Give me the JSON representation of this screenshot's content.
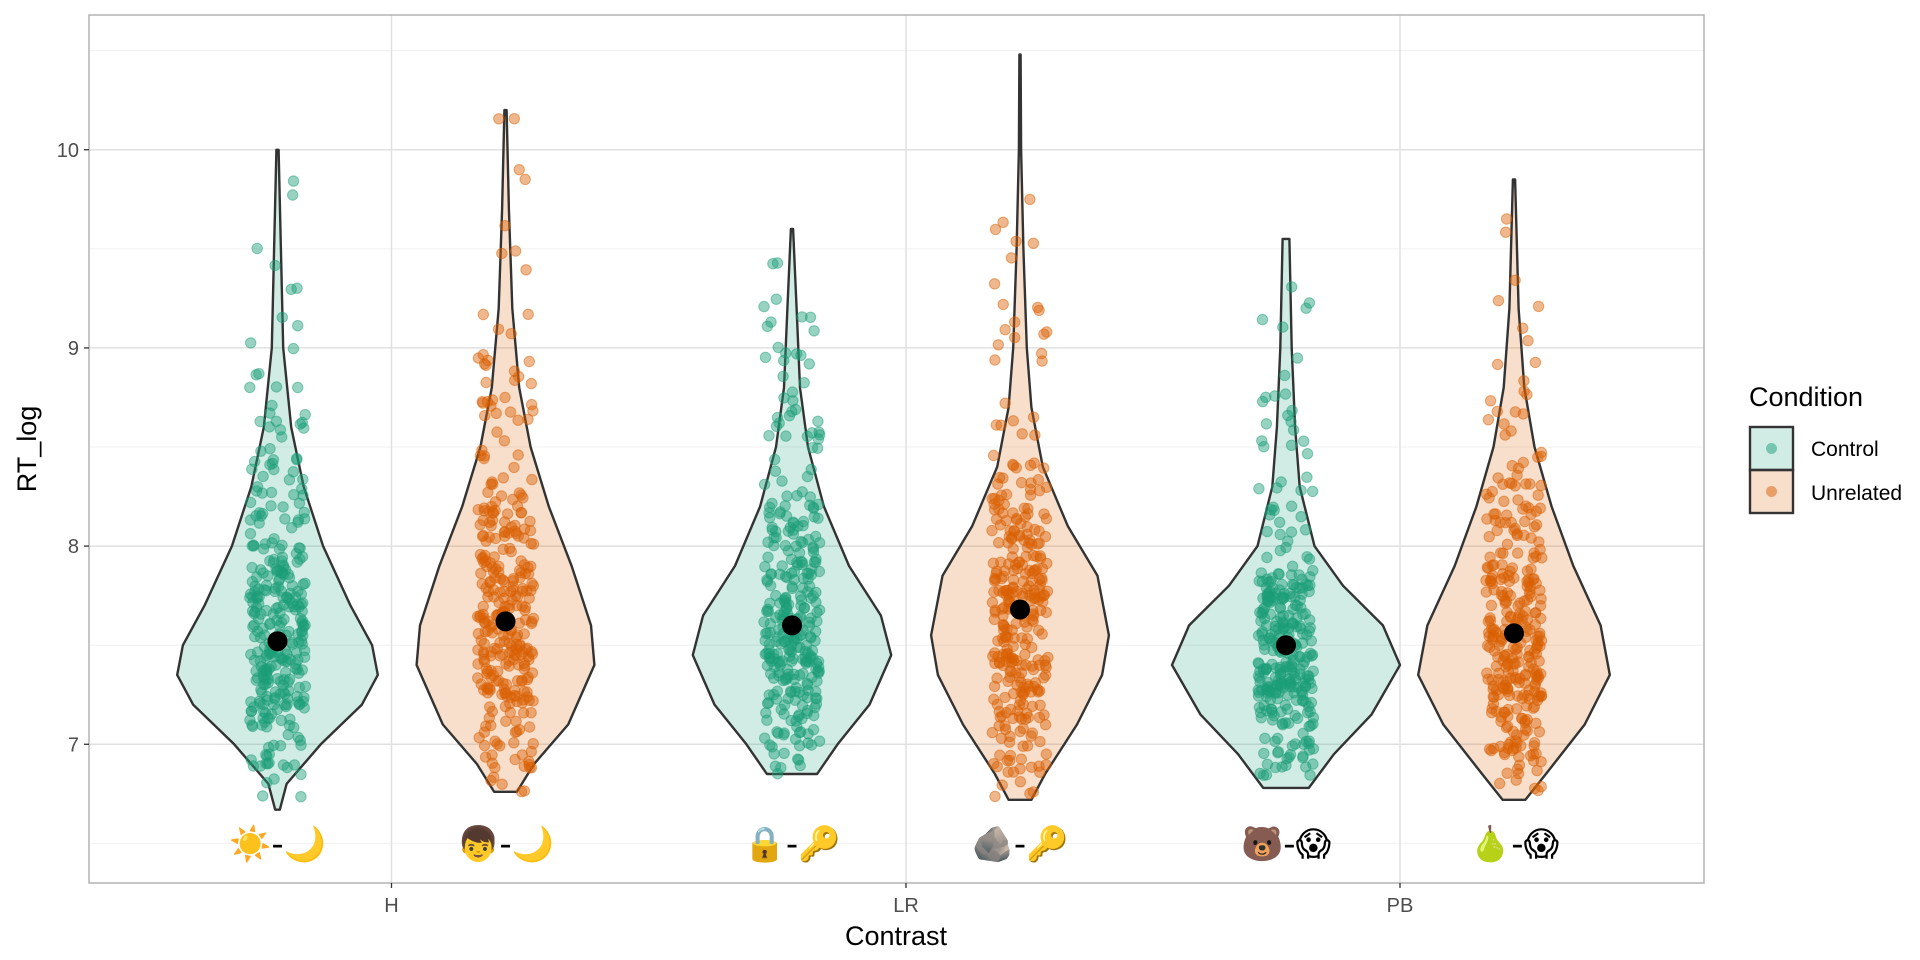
{
  "chart_data": {
    "type": "violin",
    "title": "",
    "xlabel": "Contrast",
    "ylabel": "RT_log",
    "categories": [
      "H",
      "LR",
      "PB"
    ],
    "ylim": [
      6.3,
      10.68
    ],
    "yticks": [
      7,
      8,
      9,
      10
    ],
    "grid": true,
    "legend": {
      "title": "Condition",
      "placement": "right",
      "entries": [
        "Control",
        "Unrelated"
      ]
    },
    "colors": {
      "Control": "#1B9E77",
      "Unrelated": "#D95F02"
    },
    "series": [
      {
        "name": "Control",
        "violins": [
          {
            "category": "H",
            "min": 6.67,
            "max": 10.0,
            "mean": 7.52,
            "label": "☀️-🌙",
            "profile": [
              [
                6.67,
                0.02
              ],
              [
                6.8,
                0.08
              ],
              [
                7.0,
                0.38
              ],
              [
                7.2,
                0.74
              ],
              [
                7.35,
                0.88
              ],
              [
                7.5,
                0.83
              ],
              [
                7.7,
                0.64
              ],
              [
                8.0,
                0.4
              ],
              [
                8.3,
                0.23
              ],
              [
                8.6,
                0.12
              ],
              [
                9.0,
                0.05
              ],
              [
                9.5,
                0.03
              ],
              [
                10.0,
                0.01
              ]
            ]
          },
          {
            "category": "LR",
            "min": 6.85,
            "max": 9.6,
            "mean": 7.6,
            "label": "🔒-🔑",
            "profile": [
              [
                6.85,
                0.22
              ],
              [
                7.0,
                0.4
              ],
              [
                7.2,
                0.68
              ],
              [
                7.45,
                0.87
              ],
              [
                7.65,
                0.78
              ],
              [
                7.9,
                0.5
              ],
              [
                8.2,
                0.28
              ],
              [
                8.5,
                0.14
              ],
              [
                8.8,
                0.07
              ],
              [
                9.2,
                0.04
              ],
              [
                9.6,
                0.01
              ]
            ]
          },
          {
            "category": "PB",
            "min": 6.78,
            "max": 9.55,
            "mean": 7.5,
            "label": "🐻-😱",
            "profile": [
              [
                6.78,
                0.2
              ],
              [
                6.95,
                0.42
              ],
              [
                7.15,
                0.75
              ],
              [
                7.4,
                1.0
              ],
              [
                7.6,
                0.85
              ],
              [
                7.8,
                0.5
              ],
              [
                8.0,
                0.25
              ],
              [
                8.3,
                0.12
              ],
              [
                8.6,
                0.08
              ],
              [
                9.0,
                0.05
              ],
              [
                9.55,
                0.03
              ]
            ]
          }
        ]
      },
      {
        "name": "Unrelated",
        "violins": [
          {
            "category": "H",
            "min": 6.76,
            "max": 10.2,
            "mean": 7.62,
            "label": "👦-🌙",
            "profile": [
              [
                6.76,
                0.1
              ],
              [
                6.9,
                0.25
              ],
              [
                7.1,
                0.55
              ],
              [
                7.4,
                0.78
              ],
              [
                7.6,
                0.75
              ],
              [
                7.9,
                0.58
              ],
              [
                8.2,
                0.38
              ],
              [
                8.5,
                0.22
              ],
              [
                8.8,
                0.12
              ],
              [
                9.2,
                0.06
              ],
              [
                9.7,
                0.03
              ],
              [
                10.2,
                0.01
              ]
            ]
          },
          {
            "category": "LR",
            "min": 6.72,
            "max": 10.48,
            "mean": 7.68,
            "label": "🪨-🔑",
            "profile": [
              [
                6.72,
                0.1
              ],
              [
                6.85,
                0.22
              ],
              [
                7.1,
                0.5
              ],
              [
                7.35,
                0.72
              ],
              [
                7.55,
                0.78
              ],
              [
                7.85,
                0.68
              ],
              [
                8.1,
                0.42
              ],
              [
                8.4,
                0.2
              ],
              [
                8.7,
                0.1
              ],
              [
                9.0,
                0.06
              ],
              [
                9.5,
                0.03
              ],
              [
                10.0,
                0.01
              ],
              [
                10.48,
                0.005
              ]
            ]
          },
          {
            "category": "PB",
            "min": 6.72,
            "max": 9.85,
            "mean": 7.56,
            "label": "🍐-😱",
            "profile": [
              [
                6.72,
                0.1
              ],
              [
                6.85,
                0.28
              ],
              [
                7.1,
                0.62
              ],
              [
                7.35,
                0.84
              ],
              [
                7.6,
                0.76
              ],
              [
                7.9,
                0.52
              ],
              [
                8.2,
                0.33
              ],
              [
                8.5,
                0.18
              ],
              [
                8.8,
                0.09
              ],
              [
                9.2,
                0.04
              ],
              [
                9.85,
                0.01
              ]
            ]
          }
        ]
      }
    ]
  }
}
